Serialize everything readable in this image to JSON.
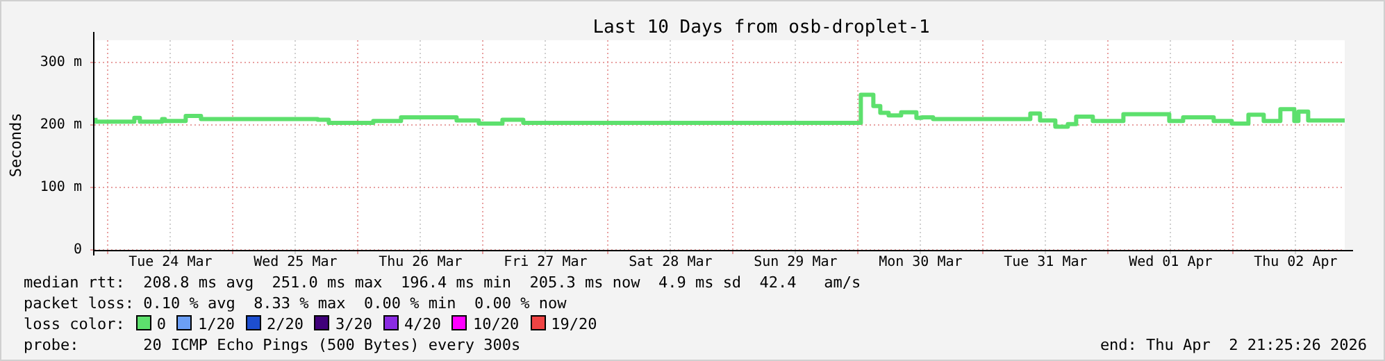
{
  "chart_data": {
    "type": "step",
    "title": "Last 10 Days from osb-droplet-1",
    "ylabel": "Seconds",
    "xlim": [
      "2026-03-23T21:25",
      "2026-04-02T21:25"
    ],
    "xticks": [
      {
        "value": "2026-03-24T00:00",
        "label": null
      },
      {
        "value": "2026-03-24T12:00",
        "label": "Tue 24 Mar"
      },
      {
        "value": "2026-03-25T00:00",
        "label": null
      },
      {
        "value": "2026-03-25T12:00",
        "label": "Wed 25 Mar"
      },
      {
        "value": "2026-03-26T00:00",
        "label": null
      },
      {
        "value": "2026-03-26T12:00",
        "label": "Thu 26 Mar"
      },
      {
        "value": "2026-03-27T00:00",
        "label": null
      },
      {
        "value": "2026-03-27T12:00",
        "label": "Fri 27 Mar"
      },
      {
        "value": "2026-03-28T00:00",
        "label": null
      },
      {
        "value": "2026-03-28T12:00",
        "label": "Sat 28 Mar"
      },
      {
        "value": "2026-03-29T00:00",
        "label": null
      },
      {
        "value": "2026-03-29T12:00",
        "label": "Sun 29 Mar"
      },
      {
        "value": "2026-03-30T00:00",
        "label": null
      },
      {
        "value": "2026-03-30T12:00",
        "label": "Mon 30 Mar"
      },
      {
        "value": "2026-03-31T00:00",
        "label": null
      },
      {
        "value": "2026-03-31T12:00",
        "label": "Tue 31 Mar"
      },
      {
        "value": "2026-04-01T00:00",
        "label": null
      },
      {
        "value": "2026-04-01T12:00",
        "label": "Wed 01 Apr"
      },
      {
        "value": "2026-04-02T00:00",
        "label": null
      },
      {
        "value": "2026-04-02T12:00",
        "label": "Thu 02 Apr"
      }
    ],
    "ylim": [
      0,
      335
    ],
    "yticks": [
      0,
      {
        "value": 100,
        "label": "100 m"
      },
      {
        "value": 200,
        "label": "200 m"
      },
      {
        "value": 300,
        "label": "300 m"
      }
    ],
    "grid": true,
    "legend": false,
    "series": [
      {
        "color": "#5de06d",
        "x": [
          "2026-03-23T21:36",
          "2026-03-24T05:04",
          "2026-03-24T06:08",
          "2026-03-24T10:24",
          "2026-03-24T10:56",
          "2026-03-24T14:56",
          "2026-03-24T17:52",
          "2026-03-25T16:16",
          "2026-03-25T18:24",
          "2026-03-26T02:56",
          "2026-03-26T08:16",
          "2026-03-26T18:56",
          "2026-03-26T23:12",
          "2026-03-27T03:44",
          "2026-03-27T07:44",
          "2026-03-30T00:32",
          "2026-03-30T02:56",
          "2026-03-30T04:16",
          "2026-03-30T05:52",
          "2026-03-30T08:16",
          "2026-03-30T11:12",
          "2026-03-30T12:16",
          "2026-03-30T14:24",
          "2026-03-31T09:04",
          "2026-03-31T10:56",
          "2026-03-31T13:52",
          "2026-03-31T16:16",
          "2026-03-31T17:52",
          "2026-03-31T21:04",
          "2026-04-01T02:56",
          "2026-04-01T11:44",
          "2026-04-01T14:24",
          "2026-04-01T20:16",
          "2026-04-01T23:44",
          "2026-04-02T02:56",
          "2026-04-02T05:52",
          "2026-04-02T09:04",
          "2026-04-02T11:44",
          "2026-04-02T12:32",
          "2026-04-02T14:24",
          "2026-04-02T15:12",
          "2026-04-02T21:25"
        ],
        "values": [
          211,
          205,
          211,
          205,
          209,
          206,
          214,
          209,
          208,
          203,
          206,
          212,
          207,
          202,
          208,
          203,
          248,
          230,
          219,
          215,
          220,
          211,
          212,
          209,
          218,
          207,
          197,
          201,
          213,
          206,
          217,
          206,
          212,
          206,
          202,
          216,
          206,
          225,
          206,
          221,
          207,
          207
        ]
      }
    ],
    "annotations": [
      "median rtt:  208.8 ms avg  251.0 ms max  196.4 ms min  205.3 ms now  4.9 ms sd  42.4   am/s",
      "packet loss: 0.10 % avg  8.33 % max  0.00 % min  0.00 % now",
      "loss color:",
      "0",
      "1/20",
      "2/20",
      "3/20",
      "4/20",
      "10/20",
      "19/20",
      "probe:       20 ICMP Echo Pings (500 Bytes) every 300s",
      "end: Thu Apr  2 21:25:26 2026"
    ]
  }
}
